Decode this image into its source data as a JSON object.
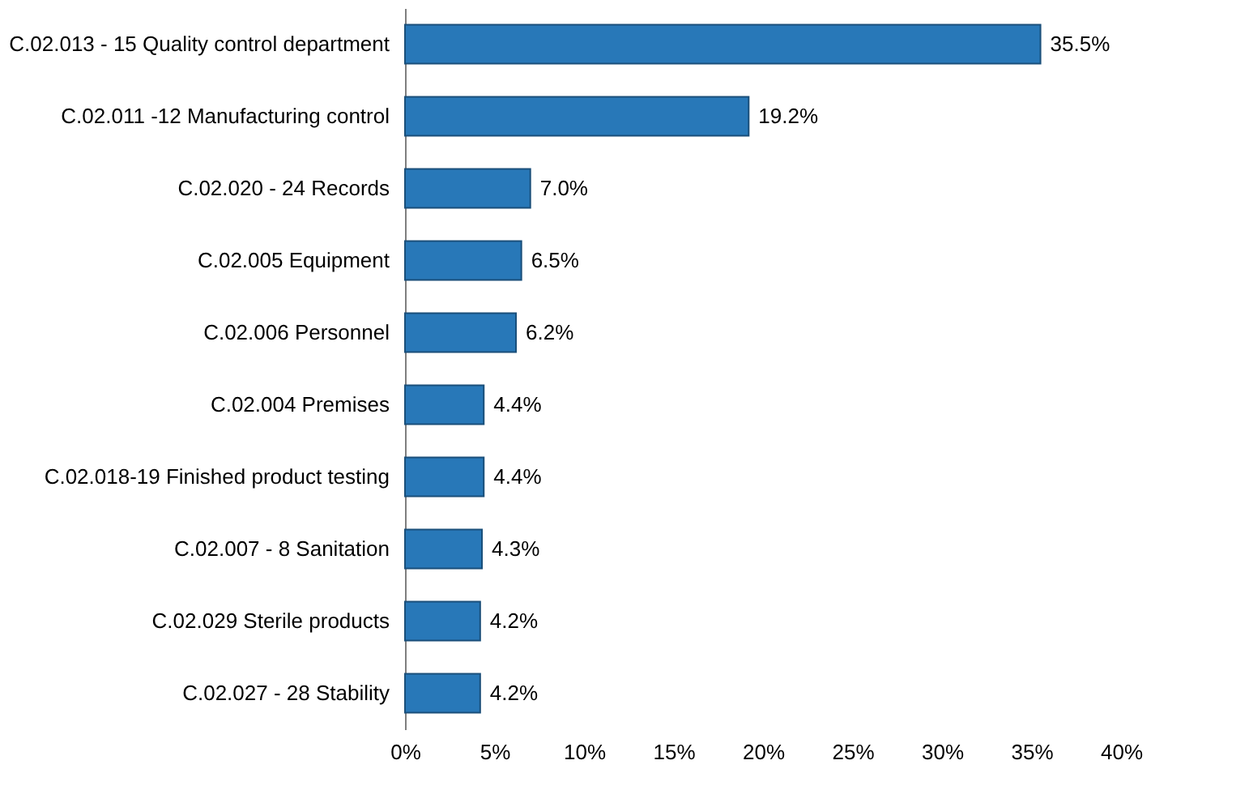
{
  "chart_data": {
    "type": "bar",
    "orientation": "horizontal",
    "categories": [
      "C.02.013 - 15 Quality control department",
      "C.02.011 -12 Manufacturing control",
      "C.02.020 - 24 Records",
      "C.02.005 Equipment",
      "C.02.006 Personnel",
      "C.02.004 Premises",
      "C.02.018-19 Finished product testing",
      "C.02.007 - 8 Sanitation",
      "C.02.029 Sterile products",
      "C.02.027 - 28 Stability"
    ],
    "values": [
      35.5,
      19.2,
      7.0,
      6.5,
      6.2,
      4.4,
      4.4,
      4.3,
      4.2,
      4.2
    ],
    "value_labels": [
      "35.5%",
      "19.2%",
      "7.0%",
      "6.5%",
      "6.2%",
      "4.4%",
      "4.4%",
      "4.3%",
      "4.2%",
      "4.2%"
    ],
    "color": "#2878b8",
    "xlim": [
      0,
      40
    ],
    "xticks": [
      {
        "value": 0,
        "label": "0%"
      },
      {
        "value": 5,
        "label": "5%"
      },
      {
        "value": 10,
        "label": "10%"
      },
      {
        "value": 15,
        "label": "15%"
      },
      {
        "value": 20,
        "label": "20%"
      },
      {
        "value": 25,
        "label": "25%"
      },
      {
        "value": 30,
        "label": "30%"
      },
      {
        "value": 35,
        "label": "35%"
      },
      {
        "value": 40,
        "label": "40%"
      }
    ],
    "grid": false
  }
}
